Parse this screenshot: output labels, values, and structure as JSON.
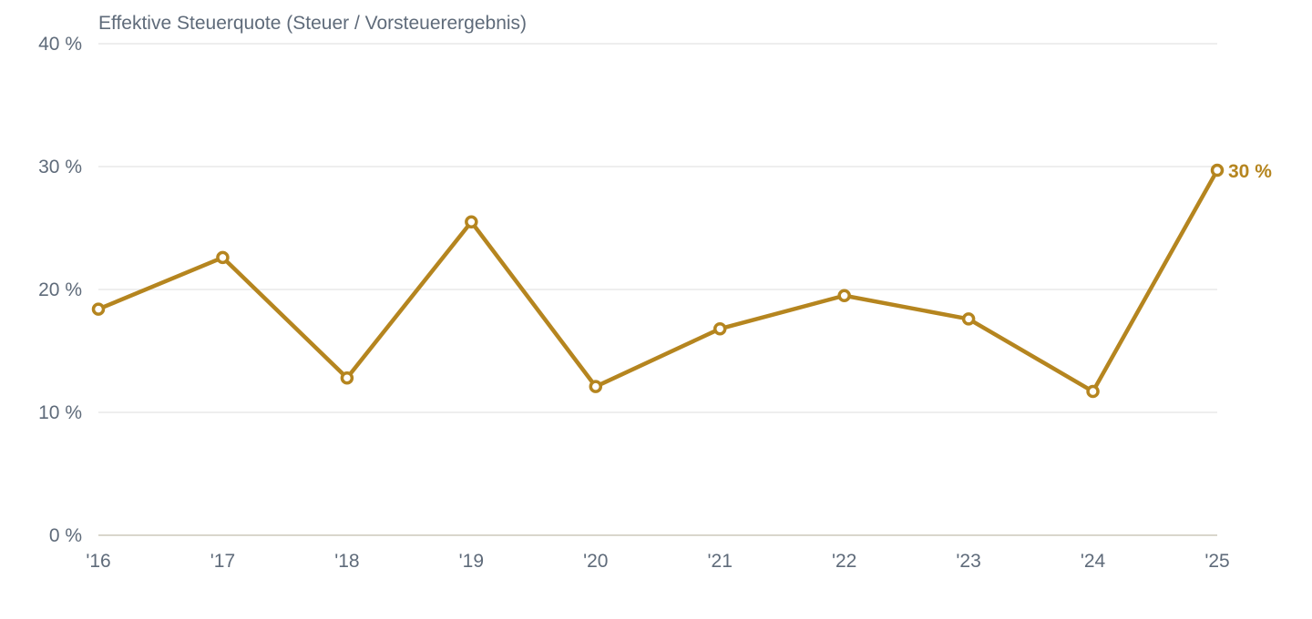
{
  "colors": {
    "series": "#b5851f",
    "text": "#5f6b7a",
    "grid": "#e8e8e8",
    "axis": "#d9d6cc"
  },
  "chart_data": {
    "type": "line",
    "title": "Effektive Steuerquote (Steuer / Vorsteuerergebnis)",
    "xlabel": "",
    "ylabel": "",
    "categories": [
      "'16",
      "'17",
      "'18",
      "'19",
      "'20",
      "'21",
      "'22",
      "'23",
      "'24",
      "'25"
    ],
    "series": [
      {
        "values": [
          18.4,
          22.6,
          12.8,
          25.5,
          12.1,
          16.8,
          19.5,
          17.6,
          11.7,
          29.7
        ]
      }
    ],
    "ylim": [
      0,
      40
    ],
    "yticks": [
      0,
      10,
      20,
      30,
      40
    ],
    "ytick_labels": [
      "0 %",
      "10 %",
      "20 %",
      "30 %",
      "40 %"
    ],
    "end_label": "30 %",
    "grid": true,
    "legend": "none"
  }
}
